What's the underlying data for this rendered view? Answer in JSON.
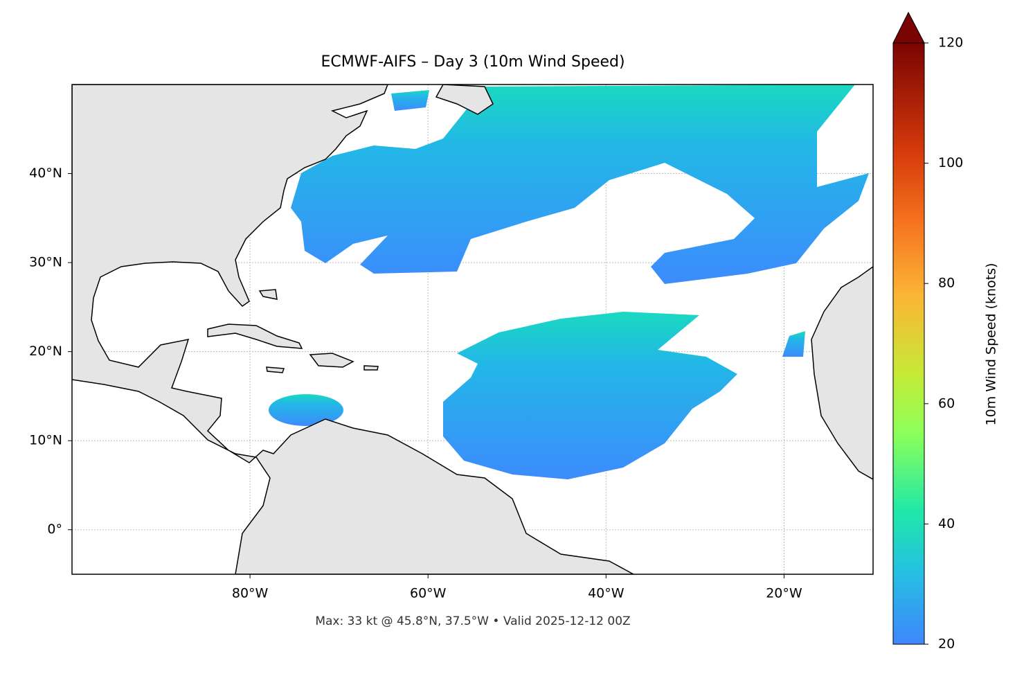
{
  "title": "ECMWF-AIFS – Day 3 (10m Wind Speed)",
  "map": {
    "xlim": [
      -100,
      -10
    ],
    "ylim": [
      -5,
      50
    ],
    "xticks": [
      {
        "value": -80,
        "label": "80°W"
      },
      {
        "value": -60,
        "label": "60°W"
      },
      {
        "value": -40,
        "label": "40°W"
      },
      {
        "value": -20,
        "label": "20°W"
      }
    ],
    "yticks": [
      {
        "value": 0,
        "label": "0°"
      },
      {
        "value": 10,
        "label": "10°N"
      },
      {
        "value": 20,
        "label": "20°N"
      },
      {
        "value": 30,
        "label": "30°N"
      },
      {
        "value": 40,
        "label": "40°N"
      }
    ]
  },
  "colorbar": {
    "label": "10m Wind Speed (knots)",
    "lim": [
      20,
      120
    ],
    "ticks": [
      20,
      40,
      60,
      80,
      100,
      120
    ]
  },
  "footer": "Max: 33 kt @ 45.8°N, 37.5°W • Valid 2025-12-12 00Z"
}
